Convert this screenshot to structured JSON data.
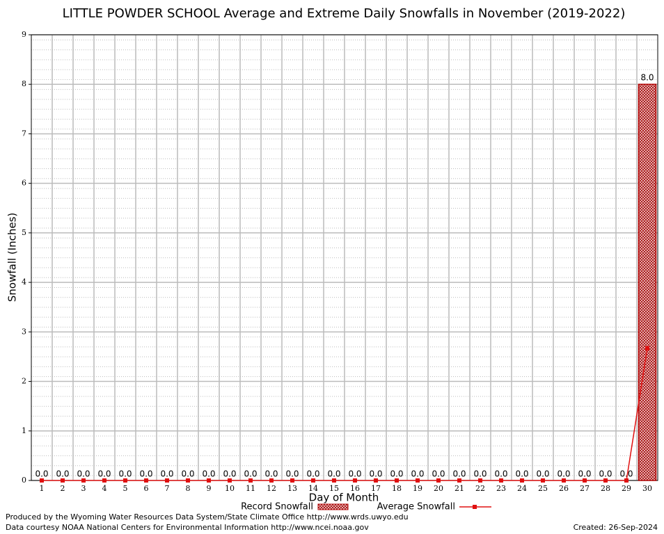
{
  "chart_data": {
    "type": "bar",
    "title": "LITTLE POWDER SCHOOL Average and Extreme Daily Snowfalls in November (2019-2022)",
    "x_label": "Day of Month",
    "y_label": "Snowfall (Inches)",
    "categories": [
      1,
      2,
      3,
      4,
      5,
      6,
      7,
      8,
      9,
      10,
      11,
      12,
      13,
      14,
      15,
      16,
      17,
      18,
      19,
      20,
      21,
      22,
      23,
      24,
      25,
      26,
      27,
      28,
      29,
      30
    ],
    "series": [
      {
        "name": "Record Snowfall",
        "type": "bar",
        "color": "#b00000",
        "values": [
          0,
          0,
          0,
          0,
          0,
          0,
          0,
          0,
          0,
          0,
          0,
          0,
          0,
          0,
          0,
          0,
          0,
          0,
          0,
          0,
          0,
          0,
          0,
          0,
          0,
          0,
          0,
          0,
          0,
          8
        ],
        "value_labels": [
          "0.0",
          "0.0",
          "0.0",
          "0.0",
          "0.0",
          "0.0",
          "0.0",
          "0.0",
          "0.0",
          "0.0",
          "0.0",
          "0.0",
          "0.0",
          "0.0",
          "0.0",
          "0.0",
          "0.0",
          "0.0",
          "0.0",
          "0.0",
          "0.0",
          "0.0",
          "0.0",
          "0.0",
          "0.0",
          "0.0",
          "0.0",
          "0.0",
          "0.0",
          "8.0"
        ]
      },
      {
        "name": "Average Snowfall",
        "type": "line",
        "color": "#e01010",
        "values": [
          0,
          0,
          0,
          0,
          0,
          0,
          0,
          0,
          0,
          0,
          0,
          0,
          0,
          0,
          0,
          0,
          0,
          0,
          0,
          0,
          0,
          0,
          0,
          0,
          0,
          0,
          0,
          0,
          0,
          2.67
        ]
      }
    ],
    "ylim": [
      0,
      9
    ],
    "yticks": [
      0,
      1,
      2,
      3,
      4,
      5,
      6,
      7,
      8,
      9
    ],
    "grid": true,
    "footer_left": [
      "Produced by the Wyoming Water Resources Data System/State Climate Office http://www.wrds.uwyo.edu",
      "Data courtesy NOAA National Centers for Environmental Information http://www.ncei.noaa.gov"
    ],
    "footer_right": "Created:  26-Sep-2024"
  }
}
